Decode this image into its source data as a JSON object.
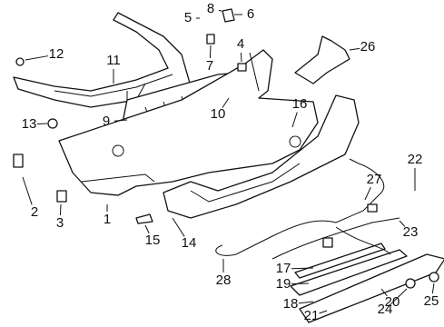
{
  "callouts": [
    "1",
    "2",
    "3",
    "4",
    "5",
    "6",
    "7",
    "8",
    "9",
    "10",
    "11",
    "12",
    "13",
    "14",
    "15",
    "16",
    "17",
    "18",
    "19",
    "20",
    "21",
    "22",
    "23",
    "24",
    "25",
    "26",
    "27",
    "28"
  ]
}
